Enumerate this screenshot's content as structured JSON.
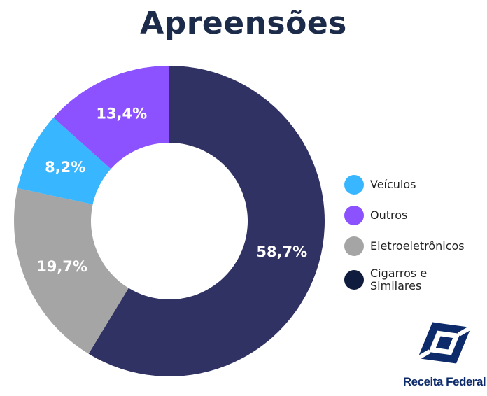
{
  "title": "Apreensões",
  "chart_data": {
    "type": "pie",
    "title": "Apreensões",
    "categories": [
      "Cigarros e Similares",
      "Eletroeletrônicos",
      "Veículos",
      "Outros"
    ],
    "values": [
      58.7,
      19.7,
      8.2,
      13.4
    ],
    "labels": [
      "58,7%",
      "19,7%",
      "8,2%",
      "13,4%"
    ],
    "colors": [
      "#303264",
      "#a5a5a5",
      "#38b6ff",
      "#8c52ff"
    ],
    "donut": true,
    "legend_position": "right"
  },
  "legend": [
    {
      "label": "Veículos",
      "color": "#38b6ff"
    },
    {
      "label": "Outros",
      "color": "#8c52ff"
    },
    {
      "label": "Eletroeletrônicos",
      "color": "#a5a5a5"
    },
    {
      "label": "Cigarros e Similares",
      "color": "#0f1c3d"
    }
  ],
  "logo": {
    "text": "Receita Federal",
    "icon": "receita-federal-logo-icon",
    "color": "#0d2a6b"
  }
}
